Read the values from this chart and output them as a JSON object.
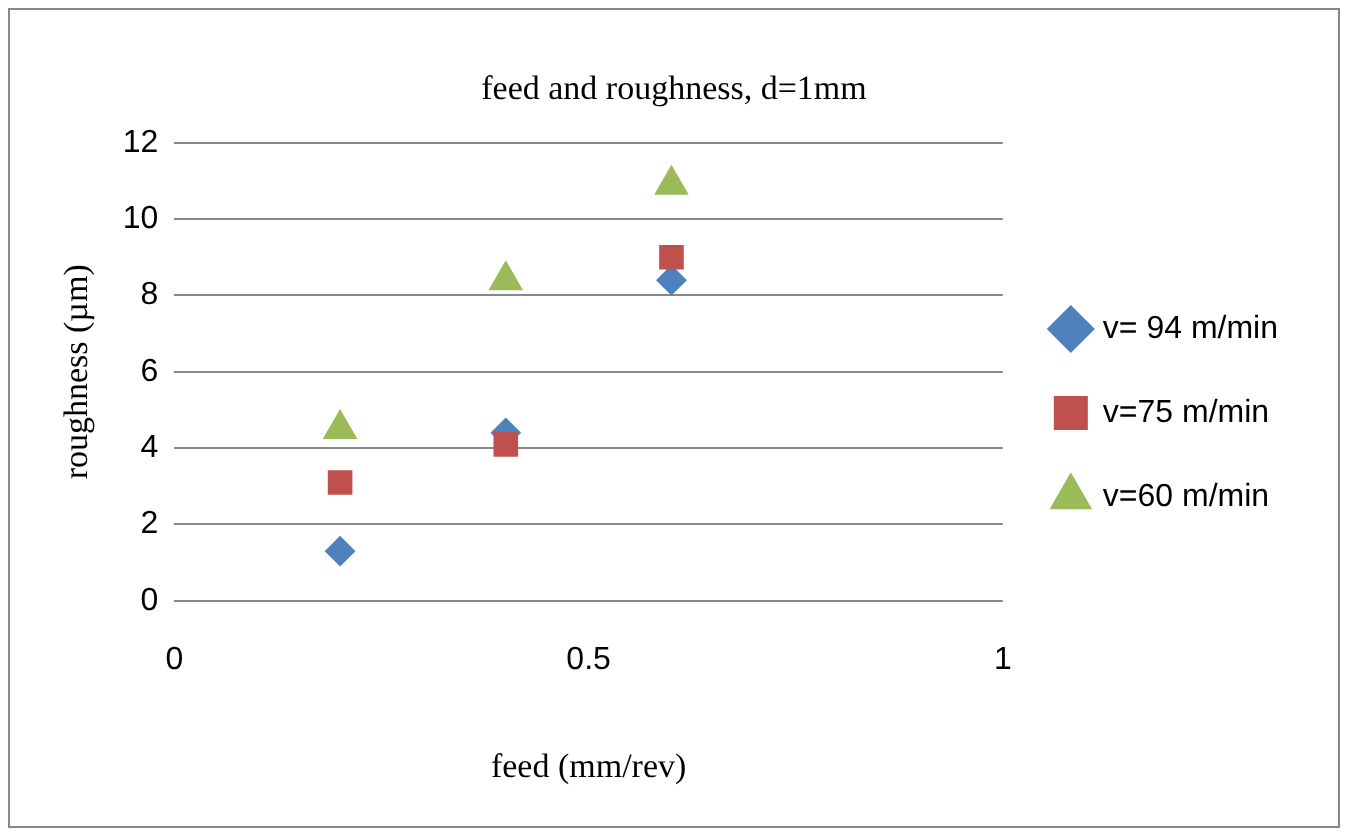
{
  "chart_data": {
    "type": "scatter",
    "title": "feed and roughness, d=1mm",
    "xlabel": "feed (mm/rev)",
    "ylabel": "roughness (µm)",
    "x": [
      0.2,
      0.4,
      0.6
    ],
    "series": [
      {
        "name": "v= 94 m/min",
        "color": "#4f81bd",
        "marker": "diamond",
        "values": [
          1.3,
          4.4,
          8.4
        ]
      },
      {
        "name": "v=75 m/min",
        "color": "#c0504d",
        "marker": "square",
        "values": [
          3.1,
          4.1,
          9.0
        ]
      },
      {
        "name": "v=60 m/min",
        "color": "#9bbb59",
        "marker": "triangle",
        "values": [
          4.5,
          8.4,
          10.9
        ]
      }
    ],
    "xlim": [
      0,
      1
    ],
    "xticks": [
      0,
      0.5,
      1
    ],
    "ylim": [
      0,
      12
    ],
    "yticks": [
      0,
      2,
      4,
      6,
      8,
      10,
      12
    ],
    "grid": "y",
    "legend": "right"
  }
}
